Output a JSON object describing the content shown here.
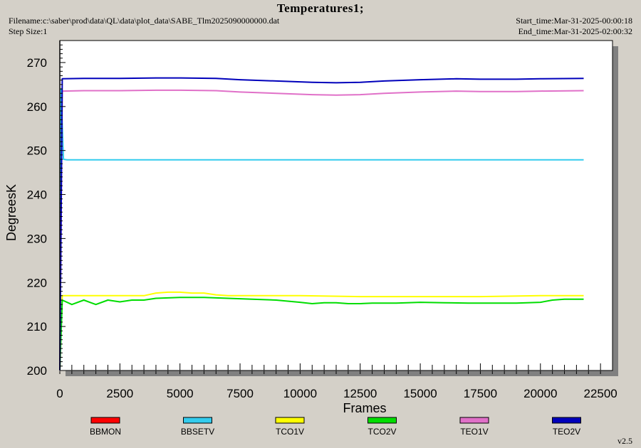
{
  "header": {
    "title": "Temperatures1;",
    "filename": "Filename:c:\\saber\\prod\\data\\QL\\data\\plot_data\\SABE_Tlm2025090000000.dat",
    "step_size": "Step Size:1",
    "start_time": "Start_time:Mar-31-2025-00:00:18",
    "end_time": "End_time:Mar-31-2025-02:00:32",
    "version": "v2.5"
  },
  "chart_data": {
    "type": "line",
    "xlabel": "Frames",
    "ylabel": "DegreesK",
    "xlim": [
      0,
      23000
    ],
    "ylim": [
      200,
      275
    ],
    "x_ticks": [
      0,
      2500,
      5000,
      7500,
      10000,
      12500,
      15000,
      17500,
      20000,
      22500
    ],
    "y_ticks": [
      200,
      210,
      220,
      230,
      240,
      250,
      260,
      270
    ],
    "grid": false,
    "legend_position": "bottom",
    "series": [
      {
        "name": "BBMON",
        "color": "#ff0000",
        "x": [],
        "y": []
      },
      {
        "name": "BBSETV",
        "color": "#33ccee",
        "x": [
          0,
          50,
          150,
          300,
          2500,
          5000,
          7500,
          10000,
          12500,
          15000,
          17500,
          20000,
          21800
        ],
        "y": [
          200,
          264,
          248,
          247.9,
          247.9,
          247.9,
          247.9,
          247.9,
          247.9,
          247.9,
          247.9,
          247.9,
          247.9
        ]
      },
      {
        "name": "TCO1V",
        "color": "#ffff00",
        "x": [
          0,
          100,
          1000,
          2500,
          3500,
          4000,
          4500,
          5000,
          5500,
          6000,
          6500,
          7000,
          7500,
          10000,
          12500,
          15000,
          17500,
          20000,
          21800
        ],
        "y": [
          200,
          217,
          217,
          217,
          217,
          217.6,
          217.8,
          217.8,
          217.6,
          217.6,
          217.2,
          217,
          217,
          217,
          216.8,
          216.8,
          216.8,
          217,
          217
        ]
      },
      {
        "name": "TCO2V",
        "color": "#00dd00",
        "x": [
          0,
          100,
          500,
          1000,
          1500,
          2000,
          2500,
          3000,
          3500,
          4000,
          5000,
          6000,
          7000,
          8000,
          9000,
          10000,
          10500,
          11000,
          11500,
          12000,
          12500,
          13000,
          14000,
          15000,
          16000,
          17000,
          18000,
          19000,
          20000,
          20500,
          21000,
          21800
        ],
        "y": [
          200,
          216,
          215,
          216,
          215,
          216,
          215.6,
          216,
          216,
          216.4,
          216.6,
          216.6,
          216.4,
          216.2,
          216,
          215.5,
          215.2,
          215.4,
          215.4,
          215.2,
          215.2,
          215.3,
          215.3,
          215.5,
          215.4,
          215.3,
          215.3,
          215.3,
          215.5,
          216,
          216.2,
          216.2
        ]
      },
      {
        "name": "TEO1V",
        "color": "#e070c8",
        "x": [
          0,
          100,
          1000,
          2500,
          4000,
          5000,
          6500,
          7500,
          9000,
          10500,
          11500,
          12500,
          13500,
          15000,
          16500,
          17500,
          19000,
          20000,
          21800
        ],
        "y": [
          200,
          263.5,
          263.6,
          263.6,
          263.7,
          263.7,
          263.6,
          263.3,
          263.0,
          262.7,
          262.6,
          262.7,
          263.0,
          263.3,
          263.5,
          263.4,
          263.4,
          263.5,
          263.6
        ]
      },
      {
        "name": "TEO2V",
        "color": "#0000bb",
        "x": [
          0,
          100,
          1000,
          2500,
          4000,
          5000,
          6500,
          7500,
          9000,
          10500,
          11500,
          12500,
          13500,
          15000,
          16500,
          17500,
          19000,
          20000,
          21800
        ],
        "y": [
          200,
          266.3,
          266.4,
          266.4,
          266.5,
          266.5,
          266.4,
          266.1,
          265.8,
          265.5,
          265.4,
          265.5,
          265.8,
          266.1,
          266.3,
          266.2,
          266.2,
          266.3,
          266.4
        ]
      }
    ]
  }
}
